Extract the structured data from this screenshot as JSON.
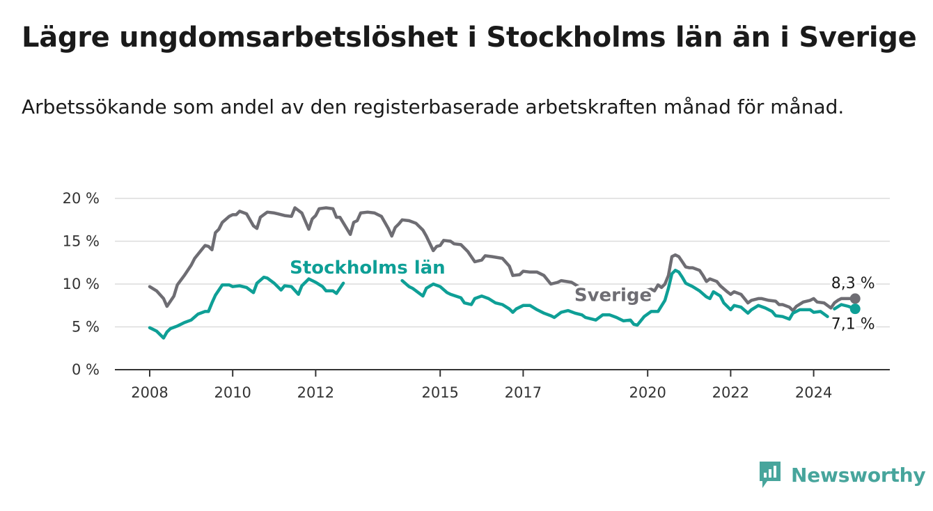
{
  "header": {
    "title": "Lägre ungdomsarbetslöshet i Stockholms län än i Sverige",
    "subtitle": "Arbetssökande som andel av den registerbaserade arbetskraften månad för månad."
  },
  "brand": {
    "name": "Newsworthy",
    "icon": "newsworthy-logo-icon",
    "color": "#47a59c"
  },
  "chart_data": {
    "type": "line",
    "title": "Lägre ungdomsarbetslöshet i Stockholms län än i Sverige",
    "subtitle": "Arbetssökande som andel av den registerbaserade arbetskraften månad för månad.",
    "x_start": "2008-01",
    "x_end": "2024-09",
    "ylim": [
      0,
      20
    ],
    "y_ticks": [
      0,
      5,
      10,
      15,
      20
    ],
    "y_tick_labels": [
      "0 %",
      "5 %",
      "10 %",
      "15 %",
      "20 %"
    ],
    "x_ticks": [
      "2008-01",
      "2010-01",
      "2012-01",
      "2015-01",
      "2017-01",
      "2020-01",
      "2022-01",
      "2024-01"
    ],
    "x_tick_labels": [
      "2008",
      "2010",
      "2012",
      "2015",
      "2017",
      "2020",
      "2022",
      "2024"
    ],
    "grid": true,
    "series": [
      {
        "name": "Sverige",
        "color": "#6e6d73",
        "end_label": "8,3 %",
        "points": [
          [
            "2008-01",
            9.7
          ],
          [
            "2008-03",
            9.2
          ],
          [
            "2008-05",
            8.3
          ],
          [
            "2008-06",
            7.4
          ],
          [
            "2008-07",
            8.0
          ],
          [
            "2008-08",
            8.6
          ],
          [
            "2008-09",
            9.9
          ],
          [
            "2008-11",
            11.0
          ],
          [
            "2009-01",
            12.2
          ],
          [
            "2009-02",
            13.0
          ],
          [
            "2009-04",
            14.0
          ],
          [
            "2009-05",
            14.5
          ],
          [
            "2009-06",
            14.4
          ],
          [
            "2009-07",
            14.0
          ],
          [
            "2009-08",
            16.0
          ],
          [
            "2009-09",
            16.4
          ],
          [
            "2009-10",
            17.2
          ],
          [
            "2009-12",
            17.9
          ],
          [
            "2010-01",
            18.1
          ],
          [
            "2010-02",
            18.1
          ],
          [
            "2010-03",
            18.5
          ],
          [
            "2010-05",
            18.2
          ],
          [
            "2010-07",
            16.8
          ],
          [
            "2010-08",
            16.5
          ],
          [
            "2010-09",
            17.8
          ],
          [
            "2010-11",
            18.4
          ],
          [
            "2011-01",
            18.3
          ],
          [
            "2011-02",
            18.2
          ],
          [
            "2011-04",
            18.0
          ],
          [
            "2011-06",
            17.9
          ],
          [
            "2011-07",
            18.9
          ],
          [
            "2011-09",
            18.3
          ],
          [
            "2011-11",
            16.4
          ],
          [
            "2011-12",
            17.6
          ],
          [
            "2012-01",
            18.0
          ],
          [
            "2012-02",
            18.8
          ],
          [
            "2012-04",
            18.9
          ],
          [
            "2012-06",
            18.8
          ],
          [
            "2012-07",
            17.8
          ],
          [
            "2012-08",
            17.8
          ],
          [
            "2012-11",
            15.8
          ],
          [
            "2012-12",
            17.2
          ],
          [
            "2013-01",
            17.4
          ],
          [
            "2013-02",
            18.3
          ],
          [
            "2013-04",
            18.4
          ],
          [
            "2013-06",
            18.3
          ],
          [
            "2013-08",
            17.9
          ],
          [
            "2013-10",
            16.5
          ],
          [
            "2013-11",
            15.6
          ],
          [
            "2013-12",
            16.6
          ],
          [
            "2014-01",
            17.0
          ],
          [
            "2014-02",
            17.5
          ],
          [
            "2014-04",
            17.4
          ],
          [
            "2014-06",
            17.1
          ],
          [
            "2014-08",
            16.3
          ],
          [
            "2014-09",
            15.6
          ],
          [
            "2014-11",
            13.9
          ],
          [
            "2014-12",
            14.4
          ],
          [
            "2015-01",
            14.5
          ],
          [
            "2015-02",
            15.1
          ],
          [
            "2015-04",
            15.0
          ],
          [
            "2015-05",
            14.7
          ],
          [
            "2015-07",
            14.6
          ],
          [
            "2015-09",
            13.8
          ],
          [
            "2015-10",
            13.2
          ],
          [
            "2015-11",
            12.6
          ],
          [
            "2016-01",
            12.8
          ],
          [
            "2016-02",
            13.3
          ],
          [
            "2016-04",
            13.2
          ],
          [
            "2016-07",
            13.0
          ],
          [
            "2016-09",
            12.1
          ],
          [
            "2016-10",
            11.0
          ],
          [
            "2016-12",
            11.1
          ],
          [
            "2017-01",
            11.5
          ],
          [
            "2017-03",
            11.4
          ],
          [
            "2017-05",
            11.4
          ],
          [
            "2017-07",
            11.0
          ],
          [
            "2017-09",
            10.0
          ],
          [
            "2017-11",
            10.2
          ],
          [
            "2017-12",
            10.4
          ],
          [
            "2018-03",
            10.2
          ],
          [
            "2018-05",
            9.7
          ],
          [
            "2018-06",
            9.4
          ],
          [
            "2018-08",
            8.7
          ]
        ],
        "points_after_label": [
          [
            "2019-11",
            8.8
          ],
          [
            "2019-12",
            9.2
          ],
          [
            "2020-02",
            9.4
          ],
          [
            "2020-03",
            9.2
          ],
          [
            "2020-04",
            9.9
          ],
          [
            "2020-05",
            9.6
          ],
          [
            "2020-06",
            10.0
          ],
          [
            "2020-07",
            11.0
          ],
          [
            "2020-08",
            13.2
          ],
          [
            "2020-09",
            13.4
          ],
          [
            "2020-10",
            13.2
          ],
          [
            "2020-11",
            12.6
          ],
          [
            "2020-12",
            12.0
          ],
          [
            "2021-01",
            11.9
          ],
          [
            "2021-02",
            11.9
          ],
          [
            "2021-04",
            11.6
          ],
          [
            "2021-05",
            11.0
          ],
          [
            "2021-06",
            10.3
          ],
          [
            "2021-07",
            10.6
          ],
          [
            "2021-09",
            10.3
          ],
          [
            "2021-10",
            9.8
          ],
          [
            "2021-12",
            9.1
          ],
          [
            "2022-01",
            8.8
          ],
          [
            "2022-02",
            9.1
          ],
          [
            "2022-04",
            8.8
          ],
          [
            "2022-05",
            8.3
          ],
          [
            "2022-06",
            7.8
          ],
          [
            "2022-07",
            8.1
          ],
          [
            "2022-09",
            8.3
          ],
          [
            "2022-10",
            8.3
          ],
          [
            "2022-12",
            8.1
          ],
          [
            "2023-02",
            8.0
          ],
          [
            "2023-03",
            7.6
          ],
          [
            "2023-04",
            7.6
          ],
          [
            "2023-06",
            7.3
          ],
          [
            "2023-07",
            6.9
          ],
          [
            "2023-08",
            7.4
          ],
          [
            "2023-10",
            7.9
          ],
          [
            "2023-12",
            8.1
          ],
          [
            "2024-01",
            8.3
          ],
          [
            "2024-02",
            7.9
          ],
          [
            "2024-04",
            7.8
          ],
          [
            "2024-05",
            7.5
          ],
          [
            "2024-06",
            7.2
          ],
          [
            "2024-07",
            7.8
          ],
          [
            "2024-08",
            8.1
          ],
          [
            "2024-09",
            8.3
          ],
          [
            "2024-11",
            8.3
          ],
          [
            "2025-01",
            8.3
          ]
        ]
      },
      {
        "name": "Stockholms län",
        "color": "#0e9f96",
        "end_label": "7,1 %",
        "points": [
          [
            "2008-01",
            4.9
          ],
          [
            "2008-03",
            4.5
          ],
          [
            "2008-05",
            3.7
          ],
          [
            "2008-06",
            4.4
          ],
          [
            "2008-07",
            4.8
          ],
          [
            "2008-09",
            5.1
          ],
          [
            "2008-11",
            5.5
          ],
          [
            "2009-01",
            5.8
          ],
          [
            "2009-03",
            6.5
          ],
          [
            "2009-05",
            6.8
          ],
          [
            "2009-06",
            6.8
          ],
          [
            "2009-07",
            7.8
          ],
          [
            "2009-08",
            8.7
          ],
          [
            "2009-10",
            9.9
          ],
          [
            "2009-12",
            9.9
          ],
          [
            "2010-01",
            9.7
          ],
          [
            "2010-03",
            9.8
          ],
          [
            "2010-05",
            9.6
          ],
          [
            "2010-07",
            9.0
          ],
          [
            "2010-08",
            10.1
          ],
          [
            "2010-10",
            10.8
          ],
          [
            "2010-11",
            10.7
          ],
          [
            "2011-01",
            10.1
          ],
          [
            "2011-03",
            9.3
          ],
          [
            "2011-04",
            9.8
          ],
          [
            "2011-06",
            9.7
          ],
          [
            "2011-08",
            8.8
          ],
          [
            "2011-09",
            9.8
          ],
          [
            "2011-11",
            10.6
          ],
          [
            "2012-01",
            10.2
          ],
          [
            "2012-03",
            9.7
          ],
          [
            "2012-04",
            9.2
          ],
          [
            "2012-06",
            9.2
          ],
          [
            "2012-07",
            8.9
          ],
          [
            "2012-09",
            10.1
          ]
        ],
        "points_after_label": [
          [
            "2014-02",
            10.4
          ],
          [
            "2014-04",
            9.7
          ],
          [
            "2014-05",
            9.5
          ],
          [
            "2014-08",
            8.6
          ],
          [
            "2014-09",
            9.5
          ],
          [
            "2014-11",
            10.0
          ],
          [
            "2015-01",
            9.7
          ],
          [
            "2015-03",
            9.0
          ],
          [
            "2015-04",
            8.8
          ],
          [
            "2015-07",
            8.4
          ],
          [
            "2015-08",
            7.8
          ],
          [
            "2015-10",
            7.6
          ],
          [
            "2015-11",
            8.3
          ],
          [
            "2016-01",
            8.6
          ],
          [
            "2016-03",
            8.3
          ],
          [
            "2016-05",
            7.8
          ],
          [
            "2016-07",
            7.6
          ],
          [
            "2016-09",
            7.1
          ],
          [
            "2016-10",
            6.7
          ],
          [
            "2016-11",
            7.1
          ],
          [
            "2017-01",
            7.5
          ],
          [
            "2017-03",
            7.5
          ],
          [
            "2017-05",
            7.0
          ],
          [
            "2017-07",
            6.6
          ],
          [
            "2017-09",
            6.3
          ],
          [
            "2017-10",
            6.1
          ],
          [
            "2017-12",
            6.7
          ],
          [
            "2018-02",
            6.9
          ],
          [
            "2018-04",
            6.6
          ],
          [
            "2018-06",
            6.4
          ],
          [
            "2018-07",
            6.1
          ],
          [
            "2018-09",
            5.9
          ],
          [
            "2018-10",
            5.8
          ],
          [
            "2018-12",
            6.4
          ],
          [
            "2019-02",
            6.4
          ],
          [
            "2019-04",
            6.1
          ],
          [
            "2019-06",
            5.7
          ],
          [
            "2019-08",
            5.8
          ],
          [
            "2019-09",
            5.3
          ],
          [
            "2019-10",
            5.2
          ],
          [
            "2019-12",
            6.2
          ],
          [
            "2020-02",
            6.8
          ],
          [
            "2020-04",
            6.8
          ],
          [
            "2020-06",
            8.1
          ],
          [
            "2020-07",
            9.5
          ],
          [
            "2020-08",
            11.2
          ],
          [
            "2020-09",
            11.6
          ],
          [
            "2020-10",
            11.4
          ],
          [
            "2020-11",
            10.8
          ],
          [
            "2020-12",
            10.1
          ],
          [
            "2021-02",
            9.7
          ],
          [
            "2021-04",
            9.2
          ],
          [
            "2021-06",
            8.5
          ],
          [
            "2021-07",
            8.3
          ],
          [
            "2021-08",
            9.1
          ],
          [
            "2021-10",
            8.6
          ],
          [
            "2021-11",
            7.8
          ],
          [
            "2022-01",
            7.0
          ],
          [
            "2022-02",
            7.5
          ],
          [
            "2022-04",
            7.3
          ],
          [
            "2022-06",
            6.6
          ],
          [
            "2022-07",
            7.0
          ],
          [
            "2022-09",
            7.5
          ],
          [
            "2022-11",
            7.2
          ],
          [
            "2023-01",
            6.8
          ],
          [
            "2023-02",
            6.3
          ],
          [
            "2023-04",
            6.2
          ],
          [
            "2023-06",
            5.9
          ],
          [
            "2023-07",
            6.6
          ],
          [
            "2023-09",
            7.0
          ],
          [
            "2023-12",
            7.0
          ],
          [
            "2024-01",
            6.7
          ],
          [
            "2024-03",
            6.8
          ],
          [
            "2024-05",
            6.2
          ]
        ],
        "points_tail": [
          [
            "2024-07",
            7.1
          ],
          [
            "2024-09",
            7.6
          ],
          [
            "2024-11",
            7.4
          ],
          [
            "2025-01",
            7.1
          ]
        ]
      }
    ],
    "series_labels": [
      {
        "series": "Stockholms län",
        "anchor_x": "2013-04",
        "anchor_y": 11.2
      },
      {
        "series": "Sverige",
        "anchor_x": "2019-03",
        "anchor_y": 8.0
      }
    ]
  }
}
